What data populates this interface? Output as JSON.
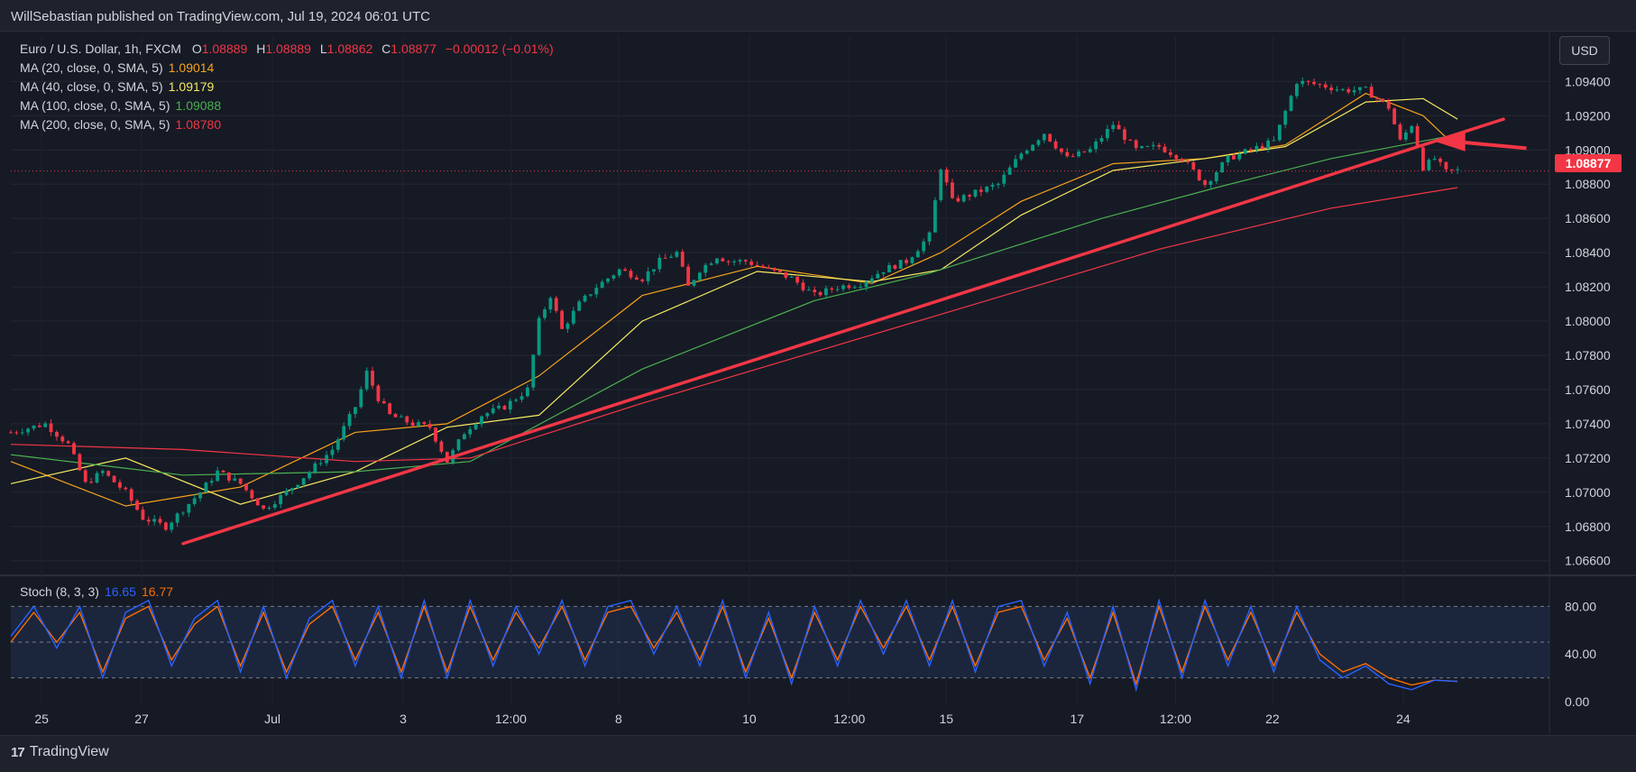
{
  "header": {
    "published": "WillSebastian published on TradingView.com, Jul 19, 2024 06:01 UTC"
  },
  "symbol": {
    "name": "Euro / U.S. Dollar, 1h, FXCM",
    "o_label": "O",
    "o": "1.08889",
    "h_label": "H",
    "h": "1.08889",
    "l_label": "L",
    "l": "1.08862",
    "c_label": "C",
    "c": "1.08877",
    "change": "−0.00012 (−0.01%)"
  },
  "indicators": [
    {
      "label": "MA (20, close, 0, SMA, 5)",
      "value": "1.09014",
      "color": "#f7a21b"
    },
    {
      "label": "MA (40, close, 0, SMA, 5)",
      "value": "1.09179",
      "color": "#f5e960"
    },
    {
      "label": "MA (100, close, 0, SMA, 5)",
      "value": "1.09088",
      "color": "#4caf50"
    },
    {
      "label": "MA (200, close, 0, SMA, 5)",
      "value": "1.08780",
      "color": "#f23645"
    }
  ],
  "stoch": {
    "label": "Stoch (8, 3, 3)",
    "k": "16.65",
    "d": "16.77",
    "k_color": "#2962ff",
    "d_color": "#ff6d00"
  },
  "currency_button": "USD",
  "last_price": "1.08877",
  "footer": {
    "brand": "TradingView",
    "logo": "17"
  },
  "chart_data": {
    "type": "candlestick",
    "symbol": "EURUSD",
    "timeframe": "1h",
    "price_axis": [
      "1.09400",
      "1.09200",
      "1.09000",
      "1.08800",
      "1.08600",
      "1.08400",
      "1.08200",
      "1.08000",
      "1.07800",
      "1.07600",
      "1.07400",
      "1.07200",
      "1.07000",
      "1.06800",
      "1.06600"
    ],
    "price_range": [
      1.0653,
      1.0956
    ],
    "stoch_axis": [
      "80.00",
      "40.00",
      "0.00"
    ],
    "stoch_range": [
      0,
      100
    ],
    "x_axis": [
      "25",
      "27",
      "Jul",
      "3",
      "12:00",
      "8",
      "10",
      "12:00",
      "15",
      "17",
      "12:00",
      "22",
      "24"
    ],
    "close_path": [
      [
        0,
        1.0735
      ],
      [
        6,
        1.074
      ],
      [
        10,
        1.0728
      ],
      [
        13,
        1.0705
      ],
      [
        16,
        1.0712
      ],
      [
        20,
        1.07
      ],
      [
        23,
        1.0685
      ],
      [
        27,
        1.068
      ],
      [
        30,
        1.069
      ],
      [
        33,
        1.07
      ],
      [
        36,
        1.0712
      ],
      [
        40,
        1.0705
      ],
      [
        44,
        1.069
      ],
      [
        48,
        1.07
      ],
      [
        52,
        1.0712
      ],
      [
        56,
        1.0725
      ],
      [
        60,
        1.075
      ],
      [
        62,
        1.077
      ],
      [
        64,
        1.0755
      ],
      [
        66,
        1.0745
      ],
      [
        70,
        1.074
      ],
      [
        73,
        1.0738
      ],
      [
        76,
        1.0718
      ],
      [
        79,
        1.0735
      ],
      [
        82,
        1.0745
      ],
      [
        86,
        1.075
      ],
      [
        90,
        1.076
      ],
      [
        92,
        1.08
      ],
      [
        94,
        1.0815
      ],
      [
        96,
        1.0795
      ],
      [
        99,
        1.081
      ],
      [
        102,
        1.082
      ],
      [
        106,
        1.083
      ],
      [
        110,
        1.0825
      ],
      [
        113,
        1.0835
      ],
      [
        116,
        1.084
      ],
      [
        118,
        1.082
      ],
      [
        120,
        1.083
      ],
      [
        123,
        1.0838
      ],
      [
        125,
        1.0835
      ],
      [
        128,
        1.0835
      ],
      [
        132,
        1.083
      ],
      [
        136,
        1.0825
      ],
      [
        140,
        1.0815
      ],
      [
        144,
        1.082
      ],
      [
        148,
        1.0822
      ],
      [
        152,
        1.083
      ],
      [
        156,
        1.0835
      ],
      [
        160,
        1.085
      ],
      [
        162,
        1.089
      ],
      [
        164,
        1.087
      ],
      [
        168,
        1.0875
      ],
      [
        172,
        1.088
      ],
      [
        176,
        1.0898
      ],
      [
        180,
        1.091
      ],
      [
        184,
        1.0895
      ],
      [
        188,
        1.09
      ],
      [
        192,
        1.0915
      ],
      [
        196,
        1.09
      ],
      [
        200,
        1.0902
      ],
      [
        204,
        1.0895
      ],
      [
        208,
        1.088
      ],
      [
        212,
        1.0895
      ],
      [
        216,
        1.09
      ],
      [
        220,
        1.0905
      ],
      [
        224,
        1.094
      ],
      [
        228,
        1.0938
      ],
      [
        232,
        1.0935
      ],
      [
        236,
        1.0935
      ],
      [
        240,
        1.0925
      ],
      [
        242,
        1.0905
      ],
      [
        244,
        1.0915
      ],
      [
        246,
        1.089
      ],
      [
        248,
        1.0895
      ],
      [
        250,
        1.0887
      ],
      [
        252,
        1.0888
      ]
    ],
    "moving_averages": [
      {
        "name": "MA 20",
        "color": "#f7a21b",
        "points": [
          [
            0,
            1.0718
          ],
          [
            20,
            1.0692
          ],
          [
            40,
            1.0703
          ],
          [
            60,
            1.0735
          ],
          [
            76,
            1.074
          ],
          [
            92,
            1.0768
          ],
          [
            110,
            1.0815
          ],
          [
            130,
            1.0832
          ],
          [
            150,
            1.0822
          ],
          [
            162,
            1.084
          ],
          [
            176,
            1.087
          ],
          [
            192,
            1.0892
          ],
          [
            208,
            1.0895
          ],
          [
            222,
            1.0903
          ],
          [
            236,
            1.0933
          ],
          [
            246,
            1.092
          ],
          [
            252,
            1.0901
          ]
        ]
      },
      {
        "name": "MA 40",
        "color": "#f5e960",
        "points": [
          [
            0,
            1.0705
          ],
          [
            20,
            1.072
          ],
          [
            40,
            1.0693
          ],
          [
            60,
            1.0712
          ],
          [
            76,
            1.0738
          ],
          [
            92,
            1.0745
          ],
          [
            110,
            1.08
          ],
          [
            130,
            1.0829
          ],
          [
            150,
            1.0823
          ],
          [
            162,
            1.083
          ],
          [
            176,
            1.0862
          ],
          [
            192,
            1.0888
          ],
          [
            208,
            1.0895
          ],
          [
            222,
            1.0902
          ],
          [
            236,
            1.0928
          ],
          [
            246,
            1.093
          ],
          [
            252,
            1.0918
          ]
        ]
      },
      {
        "name": "MA 100",
        "color": "#4caf50",
        "points": [
          [
            0,
            1.0722
          ],
          [
            30,
            1.071
          ],
          [
            60,
            1.0712
          ],
          [
            80,
            1.0718
          ],
          [
            110,
            1.0772
          ],
          [
            140,
            1.0812
          ],
          [
            160,
            1.0828
          ],
          [
            190,
            1.086
          ],
          [
            210,
            1.0878
          ],
          [
            230,
            1.0895
          ],
          [
            252,
            1.0909
          ]
        ]
      },
      {
        "name": "MA 200",
        "color": "#f23645",
        "points": [
          [
            0,
            1.0728
          ],
          [
            30,
            1.0725
          ],
          [
            60,
            1.0718
          ],
          [
            80,
            1.072
          ],
          [
            110,
            1.0752
          ],
          [
            140,
            1.0782
          ],
          [
            170,
            1.0812
          ],
          [
            200,
            1.0842
          ],
          [
            230,
            1.0866
          ],
          [
            252,
            1.0878
          ]
        ]
      }
    ],
    "trendline": {
      "color": "#f23645",
      "start": [
        30,
        1.067
      ],
      "end": [
        260,
        1.0918
      ]
    },
    "arrow": {
      "color": "#f23645",
      "tip": [
        248,
        1.0905
      ],
      "tail": [
        264,
        1.0901
      ]
    },
    "stoch_k": [
      [
        0,
        55
      ],
      [
        4,
        80
      ],
      [
        8,
        45
      ],
      [
        12,
        80
      ],
      [
        16,
        20
      ],
      [
        20,
        75
      ],
      [
        24,
        85
      ],
      [
        28,
        30
      ],
      [
        32,
        70
      ],
      [
        36,
        85
      ],
      [
        40,
        25
      ],
      [
        44,
        80
      ],
      [
        48,
        20
      ],
      [
        52,
        70
      ],
      [
        56,
        85
      ],
      [
        60,
        30
      ],
      [
        64,
        80
      ],
      [
        68,
        20
      ],
      [
        72,
        85
      ],
      [
        76,
        20
      ],
      [
        80,
        85
      ],
      [
        84,
        30
      ],
      [
        88,
        80
      ],
      [
        92,
        40
      ],
      [
        96,
        85
      ],
      [
        100,
        30
      ],
      [
        104,
        80
      ],
      [
        108,
        85
      ],
      [
        112,
        40
      ],
      [
        116,
        80
      ],
      [
        120,
        30
      ],
      [
        124,
        85
      ],
      [
        128,
        20
      ],
      [
        132,
        75
      ],
      [
        136,
        15
      ],
      [
        140,
        80
      ],
      [
        144,
        30
      ],
      [
        148,
        85
      ],
      [
        152,
        40
      ],
      [
        156,
        85
      ],
      [
        160,
        30
      ],
      [
        164,
        85
      ],
      [
        168,
        25
      ],
      [
        172,
        80
      ],
      [
        176,
        85
      ],
      [
        180,
        30
      ],
      [
        184,
        75
      ],
      [
        188,
        15
      ],
      [
        192,
        80
      ],
      [
        196,
        10
      ],
      [
        200,
        85
      ],
      [
        204,
        20
      ],
      [
        208,
        85
      ],
      [
        212,
        30
      ],
      [
        216,
        80
      ],
      [
        220,
        25
      ],
      [
        224,
        80
      ],
      [
        228,
        35
      ],
      [
        232,
        20
      ],
      [
        236,
        30
      ],
      [
        240,
        15
      ],
      [
        244,
        10
      ],
      [
        248,
        18
      ],
      [
        252,
        17
      ]
    ],
    "stoch_d": [
      [
        0,
        50
      ],
      [
        4,
        75
      ],
      [
        8,
        50
      ],
      [
        12,
        75
      ],
      [
        16,
        25
      ],
      [
        20,
        70
      ],
      [
        24,
        80
      ],
      [
        28,
        35
      ],
      [
        32,
        65
      ],
      [
        36,
        80
      ],
      [
        40,
        30
      ],
      [
        44,
        75
      ],
      [
        48,
        25
      ],
      [
        52,
        65
      ],
      [
        56,
        80
      ],
      [
        60,
        35
      ],
      [
        64,
        75
      ],
      [
        68,
        25
      ],
      [
        72,
        80
      ],
      [
        76,
        25
      ],
      [
        80,
        80
      ],
      [
        84,
        35
      ],
      [
        88,
        75
      ],
      [
        92,
        45
      ],
      [
        96,
        80
      ],
      [
        100,
        35
      ],
      [
        104,
        75
      ],
      [
        108,
        80
      ],
      [
        112,
        45
      ],
      [
        116,
        75
      ],
      [
        120,
        35
      ],
      [
        124,
        80
      ],
      [
        128,
        25
      ],
      [
        132,
        70
      ],
      [
        136,
        20
      ],
      [
        140,
        75
      ],
      [
        144,
        35
      ],
      [
        148,
        80
      ],
      [
        152,
        45
      ],
      [
        156,
        80
      ],
      [
        160,
        35
      ],
      [
        164,
        80
      ],
      [
        168,
        30
      ],
      [
        172,
        75
      ],
      [
        176,
        80
      ],
      [
        180,
        35
      ],
      [
        184,
        70
      ],
      [
        188,
        20
      ],
      [
        192,
        75
      ],
      [
        196,
        15
      ],
      [
        200,
        80
      ],
      [
        204,
        25
      ],
      [
        208,
        80
      ],
      [
        212,
        35
      ],
      [
        216,
        75
      ],
      [
        220,
        30
      ],
      [
        224,
        75
      ],
      [
        228,
        40
      ],
      [
        232,
        25
      ],
      [
        236,
        32
      ],
      [
        240,
        20
      ],
      [
        244,
        14
      ],
      [
        248,
        18
      ],
      [
        252,
        17
      ]
    ]
  }
}
